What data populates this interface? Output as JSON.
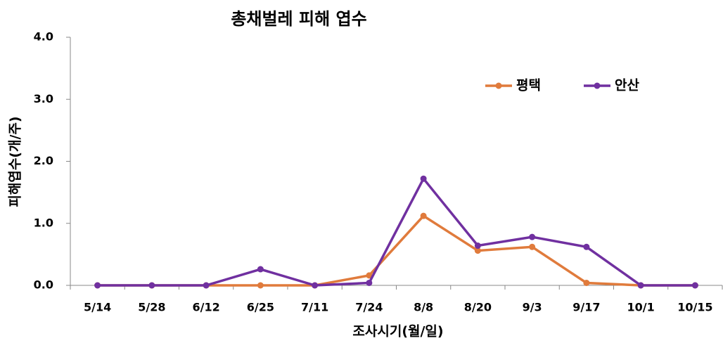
{
  "chart_data": {
    "type": "line",
    "title": "총채벌레 피해 엽수",
    "x_label": "조사시기(월/일)",
    "y_label": "피해엽수(개/주)",
    "categories": [
      "5/14",
      "5/28",
      "6/12",
      "6/25",
      "7/11",
      "7/24",
      "8/8",
      "8/20",
      "9/3",
      "9/17",
      "10/1",
      "10/15"
    ],
    "series": [
      {
        "name": "평택",
        "color": "#e07b3c",
        "values": [
          0,
          0,
          0,
          0,
          0,
          0.16,
          1.12,
          0.56,
          0.62,
          0.04,
          0,
          0
        ]
      },
      {
        "name": "안산",
        "color": "#7030a0",
        "values": [
          0,
          0,
          0,
          0.26,
          0,
          0.04,
          1.72,
          0.64,
          0.78,
          0.62,
          0,
          0
        ]
      }
    ],
    "ylim": [
      0,
      4
    ],
    "yticks": [
      {
        "value": 0,
        "label": "0.0"
      },
      {
        "value": 1,
        "label": "1.0"
      },
      {
        "value": 2,
        "label": "2.0"
      },
      {
        "value": 3,
        "label": "3.0"
      },
      {
        "value": 4,
        "label": "4.0"
      }
    ],
    "legend": "top-right"
  }
}
